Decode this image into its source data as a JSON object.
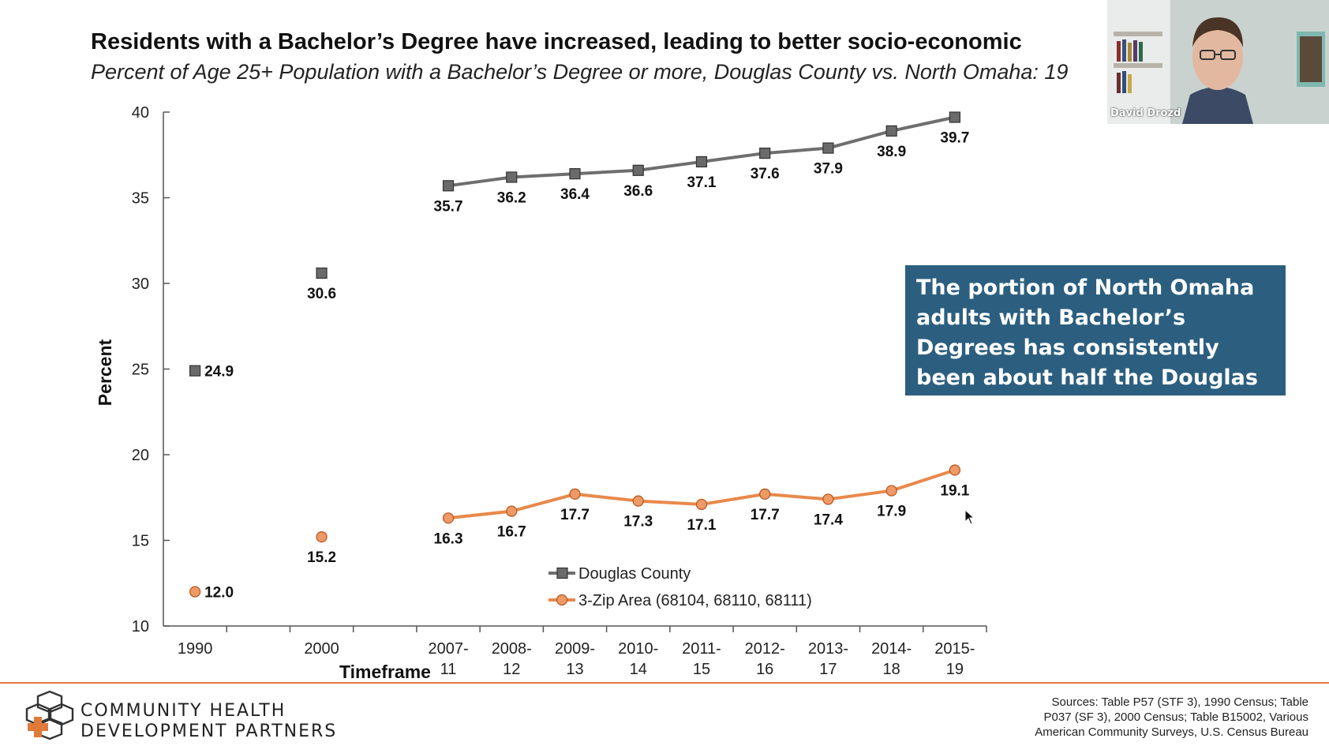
{
  "title": "Residents with a Bachelor’s Degree have increased, leading to better socio-economic",
  "subtitle": "Percent of Age 25+ Population with a Bachelor’s Degree or more, Douglas County vs. North Omaha: 19",
  "callout": "The portion of North Omaha adults with Bachelor’s Degrees has consistently been about half the Douglas County average.",
  "logo": {
    "line1": "COMMUNITY HEALTH",
    "line2": "DEVELOPMENT PARTNERS",
    "icon": "community-health-logo-icon",
    "accent": "#e07a3a"
  },
  "sources": {
    "line1": "Sources: Table P57 (STF 3), 1990 Census; Table",
    "line2": "P037 (SF 3), 2000 Census; Table B15002, Various",
    "line3": "American Community Surveys, U.S. Census Bureau"
  },
  "webcam": {
    "name": "David Drozd"
  },
  "colors": {
    "douglas": "#6e6e6e",
    "zip": "#e8894a",
    "zip_marker": "#ee9a66",
    "callout_bg": "#2c5f7f",
    "footer_line": "#e07a3a"
  },
  "chart_data": {
    "type": "line",
    "xlabel": "Timeframe",
    "ylabel": "Percent",
    "ylim": [
      10,
      40
    ],
    "yticks": [
      "10",
      "15",
      "20",
      "25",
      "30",
      "35",
      "40"
    ],
    "categories": [
      [
        "1990"
      ],
      [
        "2000"
      ],
      [
        "2007-",
        "11"
      ],
      [
        "2008-",
        "12"
      ],
      [
        "2009-",
        "13"
      ],
      [
        "2010-",
        "14"
      ],
      [
        "2011-",
        "15"
      ],
      [
        "2012-",
        "16"
      ],
      [
        "2013-",
        "17"
      ],
      [
        "2014-",
        "18"
      ],
      [
        "2015-",
        "19"
      ]
    ],
    "legend_position": "bottom-center",
    "series": [
      {
        "name": "Douglas County",
        "marker": "square",
        "values": [
          24.9,
          30.6,
          35.7,
          36.2,
          36.4,
          36.6,
          37.1,
          37.6,
          37.9,
          38.9,
          39.7
        ],
        "labels": [
          "24.9",
          "30.6",
          "35.7",
          "36.2",
          "36.4",
          "36.6",
          "37.1",
          "37.6",
          "37.9",
          "38.9",
          "39.7"
        ]
      },
      {
        "name": "3-Zip Area (68104, 68110, 68111)",
        "marker": "circle",
        "values": [
          12.0,
          15.2,
          16.3,
          16.7,
          17.7,
          17.3,
          17.1,
          17.7,
          17.4,
          17.9,
          19.1
        ],
        "labels": [
          "12.0",
          "15.2",
          "16.3",
          "16.7",
          "17.7",
          "17.3",
          "17.1",
          "17.7",
          "17.4",
          "17.9",
          "19.1"
        ]
      }
    ]
  }
}
